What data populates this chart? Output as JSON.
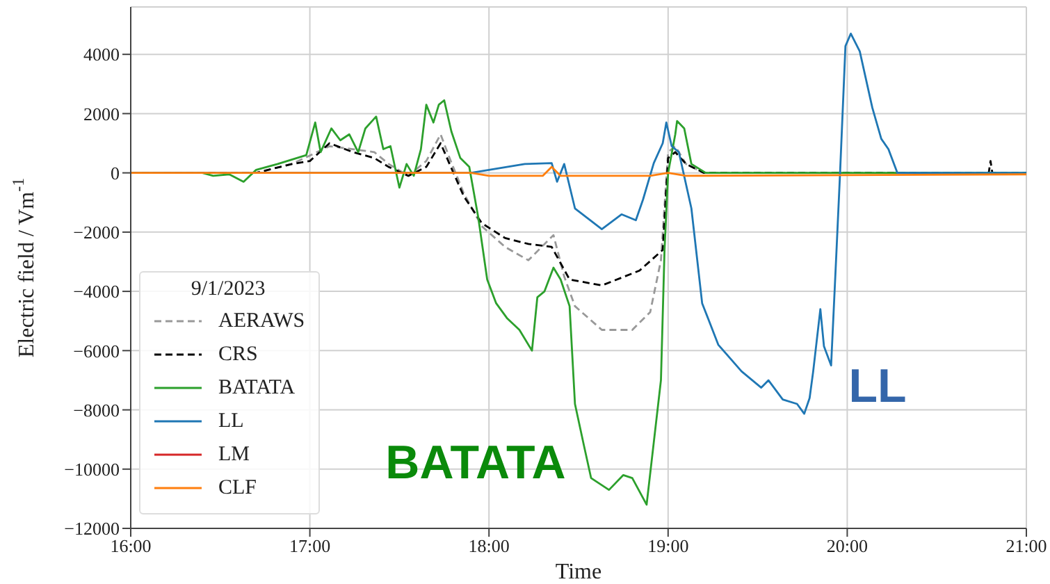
{
  "chart_data": {
    "type": "line",
    "xlabel": "Time",
    "ylabel": "Electric field / Vm$^{-1}$",
    "legend_title": "9/1/2023",
    "legend": "bottom left",
    "grid": true,
    "xlim": [
      16,
      21
    ],
    "xticks": [
      {
        "value": 16,
        "label": "16:00"
      },
      {
        "value": 17,
        "label": "17:00"
      },
      {
        "value": 18,
        "label": "18:00"
      },
      {
        "value": 19,
        "label": "19:00"
      },
      {
        "value": 20,
        "label": "20:00"
      },
      {
        "value": 21,
        "label": "21:00"
      }
    ],
    "ylim": [
      -12000,
      5600
    ],
    "yticks": [
      -12000,
      -10000,
      -8000,
      -6000,
      -4000,
      -2000,
      0,
      2000,
      4000
    ],
    "annotations": [
      "BATATA",
      "LL"
    ],
    "series": [
      {
        "name": "AERAWS",
        "color": "#999999",
        "line_style": "dashed",
        "x": [
          16,
          16.7,
          16.9,
          17.11,
          17.24,
          17.36,
          17.44,
          17.55,
          17.65,
          17.73,
          17.78,
          17.86,
          17.96,
          18.09,
          18.22,
          18.36,
          18.42,
          18.48,
          18.63,
          18.8,
          18.9,
          18.96,
          19.0,
          19.04,
          19.1,
          19.2,
          21
        ],
        "values": [
          0,
          0,
          300,
          900,
          800,
          700,
          300,
          -100,
          400,
          1300,
          500,
          -700,
          -1800,
          -2500,
          -2950,
          -2100,
          -3500,
          -4500,
          -5300,
          -5300,
          -4700,
          -2950,
          700,
          900,
          300,
          0,
          0
        ]
      },
      {
        "name": "CRS",
        "color": "#000000",
        "line_style": "dashed",
        "x": [
          16,
          16.7,
          16.9,
          17.0,
          17.11,
          17.24,
          17.36,
          17.44,
          17.55,
          17.65,
          17.73,
          17.78,
          17.86,
          17.96,
          18.09,
          18.22,
          18.35,
          18.45,
          18.63,
          18.84,
          18.97,
          19.0,
          19.04,
          19.1,
          19.2,
          20.79,
          20.8,
          20.81,
          21
        ],
        "values": [
          0,
          0,
          300,
          400,
          1000,
          700,
          500,
          200,
          -100,
          200,
          1000,
          300,
          -800,
          -1700,
          -2200,
          -2400,
          -2500,
          -3600,
          -3800,
          -3300,
          -2600,
          500,
          700,
          300,
          0,
          0,
          400,
          0,
          0
        ]
      },
      {
        "name": "BATATA",
        "color": "#2ca02c",
        "line_style": "solid",
        "x": [
          16,
          16.4,
          16.46,
          16.55,
          16.63,
          16.7,
          16.82,
          16.98,
          17.03,
          17.06,
          17.12,
          17.17,
          17.22,
          17.27,
          17.31,
          17.37,
          17.41,
          17.45,
          17.5,
          17.54,
          17.58,
          17.62,
          17.65,
          17.69,
          17.72,
          17.75,
          17.79,
          17.84,
          17.89,
          17.94,
          17.99,
          18.04,
          18.1,
          18.17,
          18.24,
          18.27,
          18.31,
          18.36,
          18.4,
          18.45,
          18.48,
          18.53,
          18.57,
          18.67,
          18.75,
          18.8,
          18.88,
          18.92,
          18.96,
          18.98,
          19.0,
          19.04,
          19.05,
          19.09,
          19.13,
          19.21,
          21
        ],
        "values": [
          0,
          0,
          -100,
          -50,
          -300,
          100,
          300,
          600,
          1700,
          700,
          1500,
          1100,
          1300,
          700,
          1500,
          1900,
          800,
          900,
          -500,
          300,
          -100,
          800,
          2300,
          1700,
          2300,
          2450,
          1400,
          500,
          200,
          -1500,
          -3600,
          -4400,
          -4900,
          -5300,
          -6000,
          -4200,
          -4000,
          -3200,
          -3600,
          -4500,
          -7800,
          -9200,
          -10300,
          -10700,
          -10200,
          -10300,
          -11200,
          -9100,
          -7000,
          -2600,
          0,
          1300,
          1750,
          1500,
          300,
          0,
          0
        ]
      },
      {
        "name": "LL",
        "color": "#1f77b4",
        "line_style": "solid",
        "x": [
          16,
          17.9,
          18.2,
          18.35,
          18.38,
          18.42,
          18.48,
          18.63,
          18.74,
          18.82,
          18.86,
          18.92,
          18.97,
          18.99,
          19.02,
          19.06,
          19.13,
          19.19,
          19.28,
          19.41,
          19.52,
          19.56,
          19.64,
          19.72,
          19.76,
          19.79,
          19.81,
          19.85,
          19.87,
          19.91,
          19.94,
          19.96,
          19.99,
          20.02,
          20.07,
          20.14,
          20.19,
          20.23,
          20.28,
          21
        ],
        "values": [
          0,
          0,
          300,
          330,
          -300,
          300,
          -1200,
          -1900,
          -1400,
          -1600,
          -900,
          330,
          1000,
          1700,
          900,
          700,
          -1200,
          -4400,
          -5800,
          -6700,
          -7250,
          -7000,
          -7650,
          -7800,
          -8130,
          -7600,
          -6700,
          -4600,
          -5850,
          -6500,
          -2640,
          0,
          4280,
          4700,
          4100,
          2200,
          1150,
          800,
          0,
          0
        ]
      },
      {
        "name": "LM",
        "color": "#d62728",
        "line_style": "solid"
      },
      {
        "name": "CLF",
        "color": "#ff7f0e",
        "line_style": "solid",
        "x": [
          16,
          17.9,
          18.0,
          18.3,
          18.35,
          18.4,
          18.9,
          19.0,
          19.1,
          21
        ],
        "values": [
          0,
          0,
          -100,
          -100,
          200,
          -100,
          -100,
          0,
          -100,
          -50
        ]
      }
    ]
  }
}
